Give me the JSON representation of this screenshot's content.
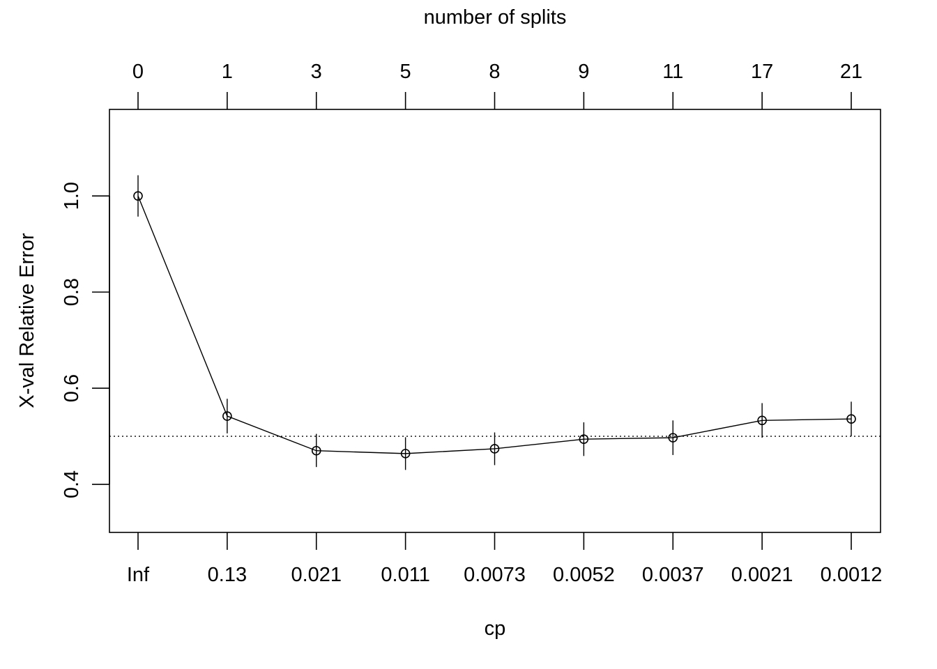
{
  "chart_data": {
    "type": "line",
    "title": "",
    "xlabel": "cp",
    "ylabel": "X-val Relative Error",
    "top_axis_label": "number of splits",
    "x_tick_labels": [
      "Inf",
      "0.13",
      "0.021",
      "0.011",
      "0.0073",
      "0.0052",
      "0.0037",
      "0.0021",
      "0.0012"
    ],
    "top_tick_labels": [
      "0",
      "1",
      "3",
      "5",
      "8",
      "9",
      "11",
      "17",
      "21"
    ],
    "y_ticks": [
      0.4,
      0.6,
      0.8,
      1.0
    ],
    "y_tick_labels": [
      "0.4",
      "0.6",
      "0.8",
      "1.0"
    ],
    "ylim": [
      0.3,
      1.18
    ],
    "grid": false,
    "series": [
      {
        "values": [
          1.0,
          0.542,
          0.47,
          0.464,
          0.474,
          0.494,
          0.497,
          0.533,
          0.536
        ],
        "err_low": [
          0.957,
          0.506,
          0.436,
          0.43,
          0.44,
          0.459,
          0.461,
          0.497,
          0.5
        ],
        "err_high": [
          1.043,
          0.578,
          0.505,
          0.498,
          0.508,
          0.529,
          0.533,
          0.569,
          0.572
        ]
      }
    ],
    "reference_line": 0.5
  }
}
